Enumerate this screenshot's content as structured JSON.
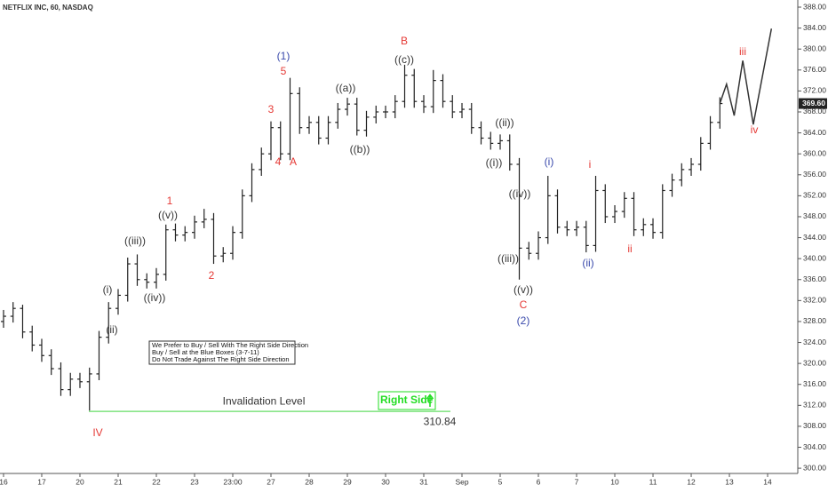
{
  "chart_data": {
    "type": "ohlc",
    "title": "NETFLIX INC, 60, NASDAQ",
    "color": "#222222",
    "open": [
      328,
      329,
      330.5,
      326,
      323.5,
      321.5,
      319,
      315,
      317,
      316.5,
      318,
      325,
      330.5,
      333,
      339,
      336,
      335.5,
      337,
      345.5,
      344.5,
      345,
      347,
      347.5,
      340.5,
      341,
      345,
      352,
      357,
      360,
      365,
      360,
      371.5,
      365,
      366,
      363,
      366,
      368.5,
      369.5,
      364.5,
      367,
      368,
      368,
      370,
      375,
      370,
      369,
      374,
      370,
      368,
      368.5,
      365,
      363,
      362,
      362.5,
      358,
      342,
      341,
      344,
      352,
      346,
      345.5,
      346,
      342.5,
      353,
      348,
      349,
      351.5,
      345.5,
      346.5,
      345,
      353,
      355,
      357,
      358,
      362,
      366
    ],
    "high": [
      330.2,
      331.7,
      331.2,
      327.2,
      324.7,
      322.7,
      320.2,
      318.2,
      318.2,
      319.2,
      326.2,
      331.7,
      334.2,
      340.2,
      340.8,
      337.2,
      338.2,
      346.5,
      346.7,
      346.2,
      348.2,
      349.5,
      348.7,
      342.2,
      346.2,
      353.2,
      358.2,
      361.2,
      366.2,
      366.2,
      374.5,
      372.7,
      367.2,
      367.2,
      367.2,
      369.7,
      370.7,
      370.7,
      368.2,
      369.2,
      369.2,
      371.2,
      377,
      376.2,
      371.2,
      376,
      375.2,
      371.2,
      369.7,
      369.7,
      366.2,
      364.2,
      363.7,
      363.7,
      359.2,
      343.2,
      345.2,
      355.8,
      353.2,
      347.2,
      347.2,
      347.2,
      355.8,
      354.2,
      350.2,
      352.7,
      352.7,
      347.7,
      347.7,
      354.2,
      356.2,
      358.2,
      359.2,
      363.2,
      367.2,
      370.8
    ],
    "low": [
      326.8,
      327.8,
      324.8,
      322.3,
      320.3,
      317.8,
      313.8,
      313.8,
      315.3,
      311,
      316.8,
      323.8,
      329.3,
      331.8,
      334.8,
      334.3,
      334.3,
      335.8,
      343.3,
      343.3,
      343.8,
      345.8,
      339,
      339.3,
      339.8,
      343.8,
      350.8,
      355.8,
      358.8,
      358.8,
      358.8,
      363.8,
      363.8,
      361.8,
      361.8,
      364.8,
      367.3,
      363.5,
      363.3,
      365.8,
      366.8,
      366.8,
      368.8,
      368.8,
      367.8,
      367.8,
      368.8,
      366.8,
      366.8,
      363.8,
      361.8,
      360.8,
      360.8,
      356.8,
      336,
      339.8,
      339.8,
      342.8,
      344.8,
      344.3,
      344.3,
      341.2,
      341.3,
      346.8,
      346.8,
      347.8,
      344.3,
      344.3,
      343.8,
      343.8,
      351.8,
      353.8,
      355.8,
      356.8,
      360.8,
      364.8
    ],
    "close": [
      329,
      330.5,
      326,
      323.5,
      321.5,
      319,
      315,
      317,
      316.5,
      318,
      325,
      330.5,
      333,
      339,
      336,
      335.5,
      337,
      345.5,
      344.5,
      345,
      347,
      347.5,
      340.5,
      341,
      345,
      352,
      357,
      360,
      365,
      360,
      371.5,
      365,
      366,
      363,
      366,
      368.5,
      369.5,
      364.5,
      367,
      368,
      368,
      370,
      375,
      370,
      369,
      374,
      370,
      368,
      368.5,
      365,
      363,
      362,
      362.5,
      358,
      342,
      341,
      344,
      352,
      346,
      345.5,
      346,
      342.5,
      353,
      348,
      349,
      351.5,
      345.5,
      346.5,
      345,
      353,
      355,
      357,
      358,
      362,
      366,
      369.6
    ],
    "projection": {
      "color": "#333333",
      "x": [
        75,
        75.7,
        76.5,
        77.4,
        78.5,
        80.4
      ],
      "y": [
        369.6,
        373.3,
        367.3,
        377.8,
        365.6,
        383.9
      ]
    },
    "xlim": [
      -0.37,
      83.16
    ],
    "xticks": [
      {
        "value": 0,
        "label": "16"
      },
      {
        "value": 4,
        "label": "17"
      },
      {
        "value": 8,
        "label": "20"
      },
      {
        "value": 12,
        "label": "21"
      },
      {
        "value": 16,
        "label": "22"
      },
      {
        "value": 20,
        "label": "23"
      },
      {
        "value": 24,
        "label": "23:00"
      },
      {
        "value": 28,
        "label": "27"
      },
      {
        "value": 32,
        "label": "28"
      },
      {
        "value": 36,
        "label": "29"
      },
      {
        "value": 40,
        "label": "30"
      },
      {
        "value": 44,
        "label": "31"
      },
      {
        "value": 48,
        "label": "Sep"
      },
      {
        "value": 52,
        "label": "5"
      },
      {
        "value": 56,
        "label": "6"
      },
      {
        "value": 60,
        "label": "7"
      },
      {
        "value": 64,
        "label": "10"
      },
      {
        "value": 68,
        "label": "11"
      },
      {
        "value": 72,
        "label": "12"
      },
      {
        "value": 76,
        "label": "13"
      },
      {
        "value": 80,
        "label": "14"
      }
    ],
    "ylim": [
      299,
      389.36
    ],
    "yticks": [
      {
        "value": 300,
        "label": "300.00"
      },
      {
        "value": 304,
        "label": "304.00"
      },
      {
        "value": 308,
        "label": "308.00"
      },
      {
        "value": 312,
        "label": "312.00"
      },
      {
        "value": 316,
        "label": "316.00"
      },
      {
        "value": 320,
        "label": "320.00"
      },
      {
        "value": 324,
        "label": "324.00"
      },
      {
        "value": 328,
        "label": "328.00"
      },
      {
        "value": 332,
        "label": "332.00"
      },
      {
        "value": 336,
        "label": "336.00"
      },
      {
        "value": 340,
        "label": "340.00"
      },
      {
        "value": 344,
        "label": "344.00"
      },
      {
        "value": 348,
        "label": "348.00"
      },
      {
        "value": 352,
        "label": "352.00"
      },
      {
        "value": 356,
        "label": "356.00"
      },
      {
        "value": 360,
        "label": "360.00"
      },
      {
        "value": 364,
        "label": "364.00"
      },
      {
        "value": 368,
        "label": "368.00"
      },
      {
        "value": 372,
        "label": "372.00"
      },
      {
        "value": 376,
        "label": "376.00"
      },
      {
        "value": 380,
        "label": "380.00"
      },
      {
        "value": 384,
        "label": "384.00"
      },
      {
        "value": 388,
        "label": "388.00"
      }
    ],
    "last_price": {
      "value": 369.6,
      "label": "369.60"
    },
    "invalidation": {
      "label": "Invalidation Level",
      "value": 310.84,
      "color": "#66dd66"
    },
    "right_side": "Right Side",
    "note": [
      "We Prefer to Buy / Sell With The Right Side Direction",
      "Buy / Sell at the Blue Boxes (3-7-11)",
      "Do Not Trade Against The Right Side Direction"
    ],
    "wave_labels": [
      {
        "text": "IV",
        "color": "#e53935"
      },
      {
        "text": "(i)",
        "color": "#333333"
      },
      {
        "text": "(ii)",
        "color": "#333333"
      },
      {
        "text": "((iii))",
        "color": "#333333"
      },
      {
        "text": "((iv))",
        "color": "#333333"
      },
      {
        "text": "((v))",
        "color": "#333333"
      },
      {
        "text": "1",
        "color": "#e53935"
      },
      {
        "text": "2",
        "color": "#e53935"
      },
      {
        "text": "3",
        "color": "#e53935"
      },
      {
        "text": "4",
        "color": "#e53935"
      },
      {
        "text": "5",
        "color": "#e53935"
      },
      {
        "text": "(1)",
        "color": "#3949ab"
      },
      {
        "text": "A",
        "color": "#e53935"
      },
      {
        "text": "((a))",
        "color": "#333333"
      },
      {
        "text": "((b))",
        "color": "#333333"
      },
      {
        "text": "((c))",
        "color": "#333333"
      },
      {
        "text": "B",
        "color": "#e53935"
      },
      {
        "text": "((ii))",
        "color": "#333333"
      },
      {
        "text": "((i))",
        "color": "#333333"
      },
      {
        "text": "((iv))",
        "color": "#333333"
      },
      {
        "text": "((iii))",
        "color": "#333333"
      },
      {
        "text": "((v))",
        "color": "#333333"
      },
      {
        "text": "C",
        "color": "#e53935"
      },
      {
        "text": "(2)",
        "color": "#3949ab"
      },
      {
        "text": "(i)",
        "color": "#3949ab"
      },
      {
        "text": "(ii)",
        "color": "#3949ab"
      },
      {
        "text": "i",
        "color": "#e53935"
      },
      {
        "text": "ii",
        "color": "#e53935"
      },
      {
        "text": "iii",
        "color": "#e53935"
      },
      {
        "text": "iv",
        "color": "#e53935"
      }
    ]
  }
}
